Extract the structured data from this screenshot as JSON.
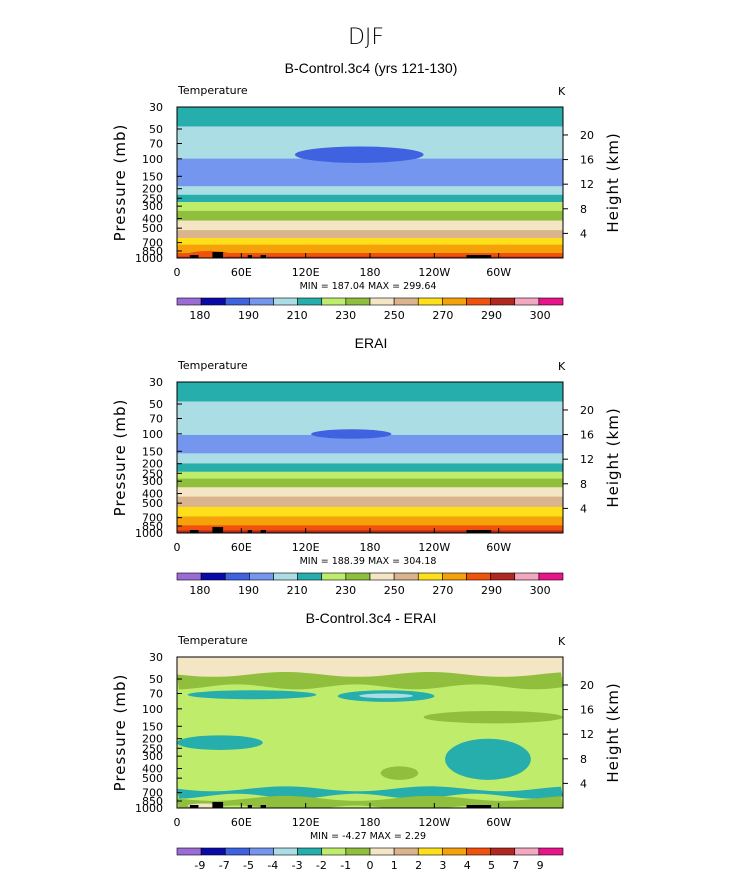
{
  "figure_title": "DJF",
  "colors": {
    "temperature_palette": [
      "#9c6cd6",
      "#0a0aa8",
      "#3f62e0",
      "#7596ee",
      "#aadde4",
      "#25aeab",
      "#c0ec6c",
      "#8fbf3c",
      "#f4e6c4",
      "#d9b48c",
      "#fde01a",
      "#f5a10a",
      "#f0520b",
      "#b02820",
      "#f2a8c0",
      "#e8148c"
    ],
    "difference_palette": [
      "#9c6cd6",
      "#0a0aa8",
      "#3f62e0",
      "#7596ee",
      "#aadde4",
      "#25aeab",
      "#c0ec6c",
      "#8fbf3c",
      "#f4e6c4",
      "#d9b48c",
      "#fde01a",
      "#f5a10a",
      "#f0520b",
      "#b02820",
      "#f2a8c0",
      "#e8148c"
    ],
    "topography": "#000000"
  },
  "chart_data": [
    {
      "type": "heatmap",
      "title": "B-Control.3c4 (yrs 121-130)",
      "variable_label": "Temperature",
      "units": "K",
      "xlabel": "",
      "ylabel": "Pressure (mb)",
      "y2label": "Height (km)",
      "x_ticks": [
        "0",
        "60E",
        "120E",
        "180",
        "120W",
        "60W"
      ],
      "y_ticks": [
        "30",
        "50",
        "70",
        "100",
        "150",
        "200",
        "250",
        "300",
        "400",
        "500",
        "700",
        "850",
        "1000"
      ],
      "y_tick_values": [
        30,
        50,
        70,
        100,
        150,
        200,
        250,
        300,
        400,
        500,
        700,
        850,
        1000
      ],
      "y2_ticks": [
        "20",
        "16",
        "12",
        "8",
        "4"
      ],
      "y2_tick_values": [
        20,
        16,
        12,
        8,
        4
      ],
      "stats_text": "MIN = 187.04  MAX = 299.64",
      "min": 187.04,
      "max": 299.64,
      "colorbar_labels": [
        "180",
        "190",
        "210",
        "230",
        "250",
        "270",
        "290",
        "300"
      ],
      "levels_bottom_mb": [
        1000,
        925,
        850,
        700,
        600,
        500,
        400,
        320,
        260,
        220,
        180,
        140,
        95,
        45
      ],
      "levels_color_index": [
        13,
        12,
        11,
        10,
        9,
        8,
        7,
        6,
        5,
        4,
        3,
        3,
        4,
        5
      ],
      "features": [
        {
          "kind": "blob",
          "lon_from": 110,
          "lon_to": 230,
          "p_from": 75,
          "p_to": 110,
          "color_index": 2
        },
        {
          "kind": "blob",
          "lon_from": 10,
          "lon_to": 50,
          "p_from": 850,
          "p_to": 1000,
          "color_index": 12
        }
      ]
    },
    {
      "type": "heatmap",
      "title": "ERAI",
      "variable_label": "Temperature",
      "units": "K",
      "xlabel": "",
      "ylabel": "Pressure (mb)",
      "y2label": "Height (km)",
      "x_ticks": [
        "0",
        "60E",
        "120E",
        "180",
        "120W",
        "60W"
      ],
      "y_ticks": [
        "30",
        "50",
        "70",
        "100",
        "150",
        "200",
        "250",
        "300",
        "400",
        "500",
        "700",
        "850",
        "1000"
      ],
      "y_tick_values": [
        30,
        50,
        70,
        100,
        150,
        200,
        250,
        300,
        400,
        500,
        700,
        850,
        1000
      ],
      "y2_ticks": [
        "20",
        "16",
        "12",
        "8",
        "4"
      ],
      "y2_tick_values": [
        20,
        16,
        12,
        8,
        4
      ],
      "stats_text": "MIN = 188.39  MAX = 304.18",
      "min": 188.39,
      "max": 304.18,
      "colorbar_labels": [
        "180",
        "190",
        "210",
        "230",
        "250",
        "270",
        "290",
        "300"
      ],
      "levels_bottom_mb": [
        1000,
        950,
        900,
        800,
        650,
        520,
        410,
        330,
        270,
        230,
        190,
        150,
        98,
        45
      ],
      "levels_color_index": [
        14,
        13,
        12,
        11,
        10,
        9,
        8,
        7,
        6,
        5,
        4,
        3,
        4,
        5
      ],
      "features": [
        {
          "kind": "blob",
          "lon_from": 125,
          "lon_to": 200,
          "p_from": 90,
          "p_to": 112,
          "color_index": 2
        }
      ]
    },
    {
      "type": "heatmap",
      "title": "B-Control.3c4 - ERAI",
      "variable_label": "Temperature",
      "units": "K",
      "xlabel": "",
      "ylabel": "Pressure (mb)",
      "y2label": "Height (km)",
      "x_ticks": [
        "0",
        "60E",
        "120E",
        "180",
        "120W",
        "60W"
      ],
      "y_ticks": [
        "30",
        "50",
        "70",
        "100",
        "150",
        "200",
        "250",
        "300",
        "400",
        "500",
        "700",
        "850",
        "1000"
      ],
      "y_tick_values": [
        30,
        50,
        70,
        100,
        150,
        200,
        250,
        300,
        400,
        500,
        700,
        850,
        1000
      ],
      "y2_ticks": [
        "20",
        "16",
        "12",
        "8",
        "4"
      ],
      "y2_tick_values": [
        20,
        16,
        12,
        8,
        4
      ],
      "stats_text": "MIN = -4.27  MAX = 2.29",
      "min": -4.27,
      "max": 2.29,
      "colorbar_labels": [
        "-9",
        "-7",
        "-5",
        "-4",
        "-3",
        "-2",
        "-1",
        "0",
        "1",
        "2",
        "3",
        "4",
        "5",
        "7",
        "9"
      ],
      "levels_bottom_mb": [
        1000,
        45
      ],
      "levels_color_index": [
        6,
        8
      ],
      "features": [
        {
          "kind": "band",
          "p_from": 45,
          "p_to": 60,
          "color_index": 7
        },
        {
          "kind": "blob",
          "lon_from": 10,
          "lon_to": 130,
          "p_from": 65,
          "p_to": 80,
          "color_index": 5
        },
        {
          "kind": "blob",
          "lon_from": 150,
          "lon_to": 240,
          "p_from": 65,
          "p_to": 85,
          "color_index": 5
        },
        {
          "kind": "blob",
          "lon_from": 170,
          "lon_to": 220,
          "p_from": 70,
          "p_to": 78,
          "color_index": 4
        },
        {
          "kind": "blob",
          "lon_from": 230,
          "lon_to": 360,
          "p_from": 105,
          "p_to": 140,
          "color_index": 7
        },
        {
          "kind": "blob",
          "lon_from": 0,
          "lon_to": 80,
          "p_from": 185,
          "p_to": 260,
          "color_index": 5
        },
        {
          "kind": "blob",
          "lon_from": 250,
          "lon_to": 330,
          "p_from": 200,
          "p_to": 520,
          "color_index": 5
        },
        {
          "kind": "blob",
          "lon_from": 190,
          "lon_to": 225,
          "p_from": 380,
          "p_to": 520,
          "color_index": 7
        },
        {
          "kind": "band",
          "p_from": 640,
          "p_to": 760,
          "color_index": 5
        },
        {
          "kind": "band",
          "p_from": 800,
          "p_to": 1000,
          "color_index": 7
        },
        {
          "kind": "blob",
          "lon_from": 10,
          "lon_to": 40,
          "p_from": 900,
          "p_to": 1000,
          "color_index": 8
        }
      ]
    }
  ]
}
